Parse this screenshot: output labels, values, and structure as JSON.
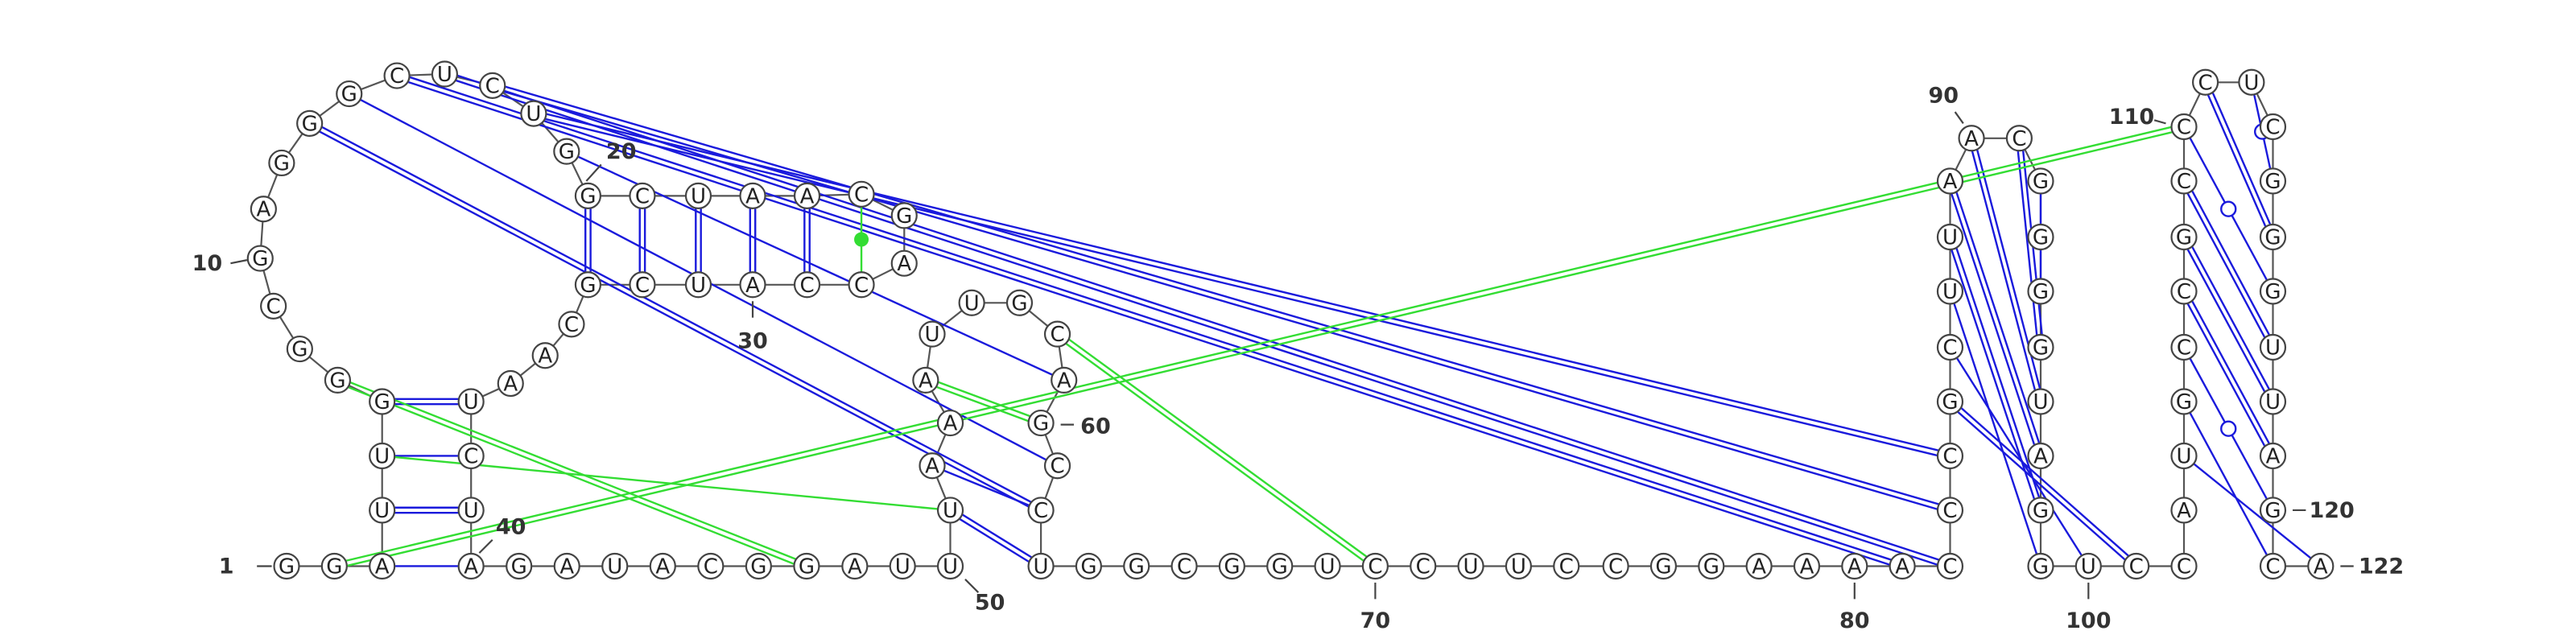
{
  "sequence": "GGAUUGGGCGAGGGCUCUGGCUAACGACCAUCGCAAUCUAGAUACGGAUUUAAAUUGCAGCCUGGCGGUCCUUCCGGAAAACCCGCUUAACGGGGUAGGUCCAUGCCGCCCUCGGGUUAGCA",
  "numbering_labels": [
    "1",
    "10",
    "20",
    "30",
    "40",
    "50",
    "60",
    "70",
    "80",
    "90",
    "100",
    "110",
    "120",
    "122"
  ],
  "note": "",
  "colors": {
    "blue_pair": "#1a1adc",
    "green_pair": "#33dd33",
    "backbone": "#555555"
  }
}
